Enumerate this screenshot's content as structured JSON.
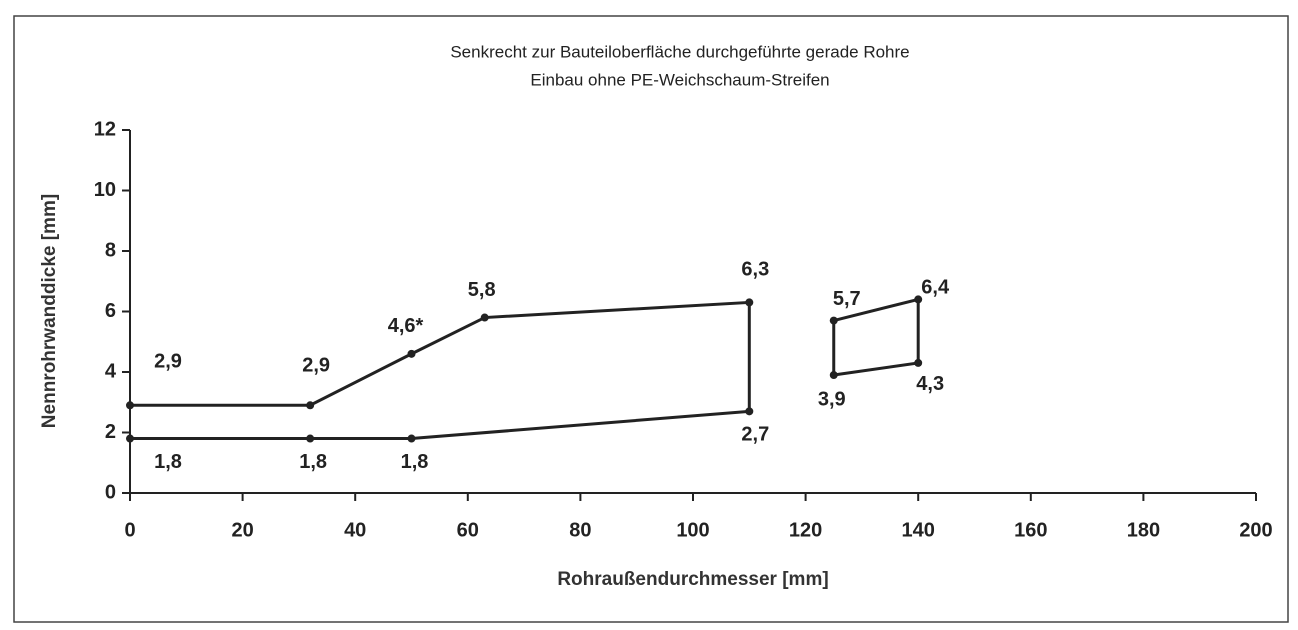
{
  "chart_data": {
    "type": "line",
    "title": [
      "Senkrecht zur Bauteiloberfläche durchgeführte gerade Rohre",
      "Einbau ohne PE-Weichschaum-Streifen"
    ],
    "x_label": "Rohraußendurchmesser [mm]",
    "y_label": "Nennrohrwanddicke [mm]",
    "xlim": [
      0,
      200
    ],
    "xticks": [
      0,
      20,
      40,
      60,
      80,
      100,
      120,
      140,
      160,
      180,
      200
    ],
    "ylim": [
      0,
      12
    ],
    "yticks": [
      0,
      2,
      4,
      6,
      8,
      10,
      12
    ],
    "grid": false,
    "series": [
      {
        "color": "#222222",
        "closed": false,
        "x": [
          0,
          32,
          50,
          63,
          110,
          110,
          50,
          32,
          0
        ],
        "values": [
          2.9,
          2.9,
          4.6,
          5.8,
          6.3,
          2.7,
          1.8,
          1.8,
          1.8
        ],
        "value_labels": [
          "2,9",
          "2,9",
          "4,6*",
          "5,8",
          "6,3",
          "2,7",
          "1,8",
          "1,8",
          "1,8"
        ]
      },
      {
        "color": "#222222",
        "closed": true,
        "x": [
          125,
          140,
          140,
          125
        ],
        "values": [
          5.7,
          6.4,
          4.3,
          3.9
        ],
        "value_labels": [
          "5,7",
          "6,4",
          "4,3",
          "3,9"
        ]
      }
    ]
  }
}
